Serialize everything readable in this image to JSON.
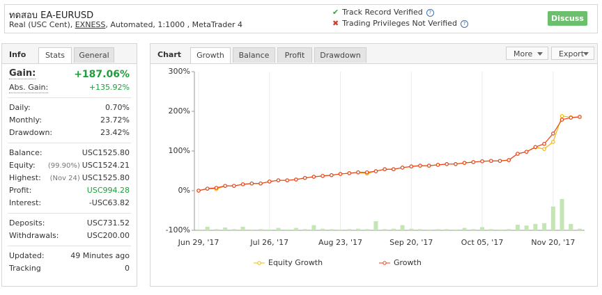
{
  "header": {
    "title": "ทดสอบ EA-EURUSD",
    "subtitle_start": "Real (USC Cent), ",
    "broker": "EXNESS",
    "subtitle_end": ", Automated, 1:1000 , MetaTrader 4",
    "verified": "Track Record Verified",
    "not_verified": "Trading Privileges Not Verified",
    "discuss": "Discuss"
  },
  "info": {
    "tabs": [
      "Info",
      "Stats",
      "General"
    ],
    "active_tab": 1,
    "groups": [
      [
        {
          "label": "Gain:",
          "value": "+187.06%",
          "color": "#1e9e3a",
          "big": true
        },
        {
          "label": "Abs. Gain:",
          "value": "+135.92%",
          "color": "#1e9e3a"
        }
      ],
      [
        {
          "label": "Daily:",
          "value": "0.70%"
        },
        {
          "label": "Monthly:",
          "value": "23.72%"
        },
        {
          "label": "Drawdown:",
          "value": "23.42%"
        }
      ],
      [
        {
          "label": "Balance:",
          "value": "USC1525.80"
        },
        {
          "label": "Equity:",
          "note": "(99.90%)",
          "value": "USC1524.21"
        },
        {
          "label": "Highest:",
          "note": "(Nov 24)",
          "value": "USC1525.80"
        },
        {
          "label": "Profit:",
          "value": "USC994.28",
          "color": "#1e9e3a"
        },
        {
          "label": "Interest:",
          "value": "-USC63.82"
        }
      ],
      [
        {
          "label": "Deposits:",
          "value": "USC731.52"
        },
        {
          "label": "Withdrawals:",
          "value": "USC200.00"
        }
      ],
      [
        {
          "label": "Updated:",
          "value": "49 Minutes ago"
        },
        {
          "label": "Tracking",
          "value": "0"
        }
      ]
    ]
  },
  "panel": {
    "heading": "Chart",
    "tabs": [
      "Growth",
      "Balance",
      "Profit",
      "Drawdown"
    ],
    "active_tab": 0,
    "buttons": [
      "More",
      "Export"
    ]
  },
  "chart_data": {
    "type": "line",
    "grid": true,
    "categories": [
      "Jun 29, '17",
      null,
      null,
      null,
      null,
      null,
      null,
      null,
      "Jul 26, '17",
      null,
      null,
      null,
      null,
      null,
      null,
      null,
      "Aug 23, '17",
      null,
      null,
      null,
      null,
      null,
      null,
      null,
      "Sep 20, '17",
      null,
      null,
      null,
      null,
      null,
      null,
      null,
      "Oct 05, '17",
      null,
      null,
      null,
      null,
      null,
      null,
      null,
      "Nov 20, '17",
      null,
      null,
      null
    ],
    "ylim": [
      -100,
      300
    ],
    "yticks": [
      {
        "value": -100,
        "label": "-100%"
      },
      {
        "value": 0,
        "label": "0%"
      },
      {
        "value": 100,
        "label": "100%"
      },
      {
        "value": 200,
        "label": "200%"
      },
      {
        "value": 300,
        "label": "300%"
      }
    ],
    "series": [
      {
        "name": "Equity Growth",
        "color": "#f5b800",
        "values": [
          0,
          5,
          4,
          12,
          12,
          16,
          18,
          18,
          23,
          26,
          26,
          28,
          32,
          35,
          37,
          39,
          42,
          44,
          46,
          43,
          49,
          54,
          54,
          58,
          61,
          63,
          63,
          65,
          67,
          67,
          70,
          72,
          74,
          75,
          75,
          77,
          93,
          98,
          109,
          105,
          123,
          188,
          185,
          186
        ]
      },
      {
        "name": "Growth",
        "color": "#e8411c",
        "values": [
          0,
          5,
          7,
          12,
          12,
          16,
          18,
          18,
          23,
          26,
          26,
          28,
          32,
          35,
          37,
          39,
          42,
          44,
          46,
          46,
          49,
          54,
          54,
          58,
          61,
          63,
          63,
          65,
          67,
          67,
          70,
          72,
          74,
          75,
          75,
          77,
          93,
          98,
          110,
          118,
          144,
          179,
          184,
          186
        ]
      }
    ],
    "bars": {
      "color": "#c5e6b4",
      "values": [
        -98,
        -91,
        -97,
        -93,
        -97,
        -91,
        -98,
        -97,
        -98,
        -94,
        -98,
        -94,
        -97,
        -87,
        -96,
        -97,
        -98,
        -97,
        -96,
        -97,
        -77,
        -97,
        -96,
        -87,
        -96,
        -97,
        -98,
        -97,
        -97,
        -98,
        -94,
        -97,
        -92,
        -97,
        -98,
        -97,
        -86,
        -88,
        -84,
        -82,
        -40,
        -21,
        -84,
        -96
      ]
    }
  }
}
